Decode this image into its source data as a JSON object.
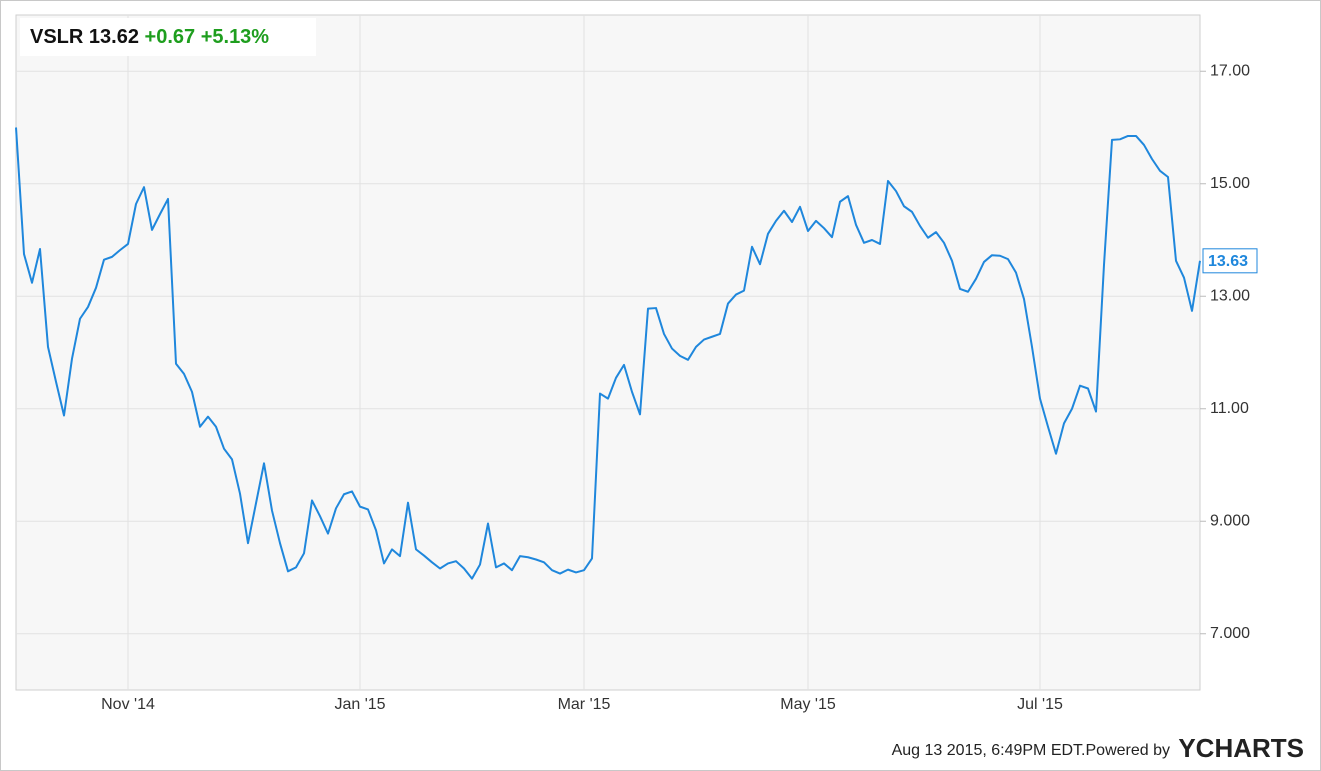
{
  "header": {
    "symbol": "VSLR",
    "price": 13.62,
    "change": "+0.67",
    "change_pct": "+5.13%"
  },
  "footer": {
    "timestamp": "Aug 13 2015, 6:49PM EDT.",
    "powered_by": "Powered by",
    "brand": "YCHARTS"
  },
  "chart_data": {
    "type": "line",
    "categories": [
      null,
      null,
      null,
      null,
      null,
      null,
      null,
      null,
      null,
      null,
      null,
      null,
      null,
      null,
      "Nov '14",
      null,
      null,
      null,
      null,
      null,
      null,
      null,
      null,
      null,
      null,
      null,
      null,
      null,
      null,
      null,
      null,
      null,
      null,
      null,
      null,
      null,
      null,
      null,
      null,
      null,
      null,
      null,
      null,
      "Jan '15",
      null,
      null,
      null,
      null,
      null,
      null,
      null,
      null,
      null,
      null,
      null,
      null,
      null,
      null,
      null,
      null,
      null,
      null,
      null,
      null,
      null,
      null,
      null,
      null,
      null,
      null,
      null,
      "Mar '15",
      null,
      null,
      null,
      null,
      null,
      null,
      null,
      null,
      null,
      null,
      null,
      null,
      null,
      null,
      null,
      null,
      null,
      null,
      null,
      null,
      null,
      null,
      null,
      null,
      null,
      null,
      null,
      "May '15",
      null,
      null,
      null,
      null,
      null,
      null,
      null,
      null,
      null,
      null,
      null,
      null,
      null,
      null,
      null,
      null,
      null,
      null,
      null,
      null,
      null,
      null,
      null,
      null,
      null,
      null,
      null,
      null,
      "Jul '15",
      null,
      null,
      null,
      null,
      null,
      null,
      null,
      null,
      null,
      null,
      null,
      null,
      null,
      null,
      null,
      null,
      null,
      null,
      null,
      null
    ],
    "series": [
      {
        "name": "VSLR",
        "color": "#1f87dc",
        "values": [
          16.0,
          13.75,
          13.24,
          13.84,
          12.1,
          11.48,
          10.88,
          11.89,
          12.6,
          12.81,
          13.15,
          13.65,
          13.7,
          13.82,
          13.93,
          14.64,
          14.94,
          14.18,
          14.46,
          14.73,
          11.8,
          11.62,
          11.3,
          10.68,
          10.86,
          10.68,
          10.29,
          10.1,
          9.49,
          8.61,
          9.32,
          10.03,
          9.19,
          8.61,
          8.11,
          8.18,
          8.43,
          9.37,
          9.09,
          8.78,
          9.23,
          9.48,
          9.53,
          9.26,
          9.21,
          8.84,
          8.25,
          8.5,
          8.38,
          9.33,
          8.5,
          8.39,
          8.27,
          8.16,
          8.25,
          8.29,
          8.16,
          7.98,
          8.23,
          8.96,
          8.18,
          8.25,
          8.13,
          8.38,
          8.36,
          8.32,
          8.27,
          8.13,
          8.07,
          8.14,
          8.09,
          8.13,
          8.34,
          11.27,
          11.18,
          11.55,
          11.78,
          11.3,
          10.9,
          12.78,
          12.79,
          12.33,
          12.07,
          11.94,
          11.87,
          12.1,
          12.23,
          12.28,
          12.33,
          12.87,
          13.03,
          13.1,
          13.88,
          13.57,
          14.11,
          14.34,
          14.52,
          14.32,
          14.59,
          14.16,
          14.34,
          14.21,
          14.05,
          14.68,
          14.78,
          14.27,
          13.95,
          14.0,
          13.93,
          15.05,
          14.87,
          14.6,
          14.5,
          14.25,
          14.04,
          14.14,
          13.95,
          13.63,
          13.13,
          13.08,
          13.31,
          13.61,
          13.73,
          13.72,
          13.66,
          13.42,
          12.95,
          12.1,
          11.18,
          10.68,
          10.2,
          10.74,
          11.0,
          11.41,
          11.36,
          10.95,
          13.56,
          15.78,
          15.79,
          15.85,
          15.85,
          15.69,
          15.44,
          15.23,
          15.12,
          13.63,
          13.33,
          12.74,
          13.63
        ]
      }
    ],
    "ylim": [
      6.0,
      18.0
    ],
    "yticks": [
      {
        "value": 7,
        "label": "7.000"
      },
      {
        "value": 9,
        "label": "9.000"
      },
      {
        "value": 11,
        "label": "11.00"
      },
      {
        "value": 13,
        "label": "13.00"
      },
      {
        "value": 15,
        "label": "15.00"
      },
      {
        "value": 17,
        "label": "17.00"
      }
    ],
    "grid": true
  }
}
